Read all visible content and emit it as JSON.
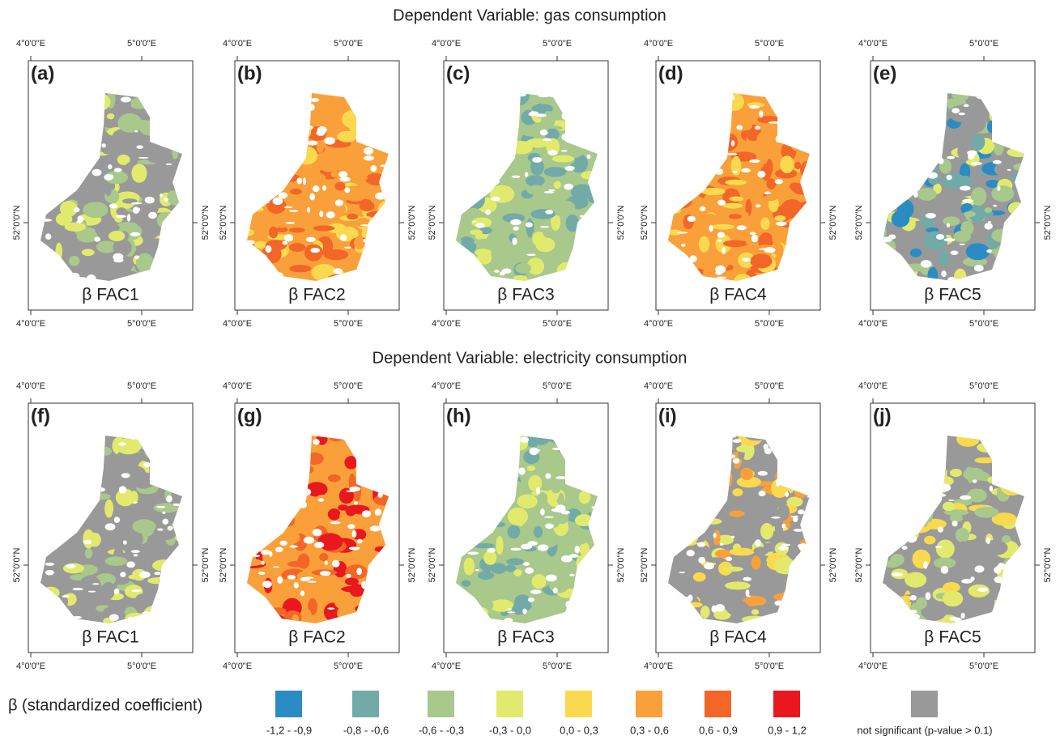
{
  "rows": [
    {
      "title": "Dependent Variable: gas consumption",
      "panels": [
        {
          "letter": "(a)",
          "label": "β FAC1"
        },
        {
          "letter": "(b)",
          "label": "β FAC2"
        },
        {
          "letter": "(c)",
          "label": "β FAC3"
        },
        {
          "letter": "(d)",
          "label": "β FAC4"
        },
        {
          "letter": "(e)",
          "label": "β FAC5"
        }
      ]
    },
    {
      "title": "Dependent Variable: electricity consumption",
      "panels": [
        {
          "letter": "(f)",
          "label": "β FAC1"
        },
        {
          "letter": "(g)",
          "label": "β FAC2"
        },
        {
          "letter": "(h)",
          "label": "β FAC3"
        },
        {
          "letter": "(i)",
          "label": "β FAC4"
        },
        {
          "letter": "(j)",
          "label": "β FAC5"
        }
      ]
    }
  ],
  "coordinates": {
    "lon_west": "4°0'0\"E",
    "lon_east": "5°0'0\"E",
    "lat": "52°0'0\"N"
  },
  "legend": {
    "title": "β (standardized coefficient)",
    "items": [
      {
        "label": "-1,2 - -0,9",
        "color": "#2b8cc4"
      },
      {
        "label": "-0,8 - -0,6",
        "color": "#72aaa8"
      },
      {
        "label": "-0,6 - -0,3",
        "color": "#a8c88c"
      },
      {
        "label": "-0,3 - 0,0",
        "color": "#e2ea6e"
      },
      {
        "label": "0,0 - 0,3",
        "color": "#fad94e"
      },
      {
        "label": "0,3 - 0,6",
        "color": "#f9a03a"
      },
      {
        "label": "0,6 - 0,9",
        "color": "#f26628"
      },
      {
        "label": "0,9 - 1,2",
        "color": "#e8181e"
      },
      {
        "label": "not significant (p-value > 0.1)",
        "color": "#999999"
      }
    ]
  }
}
